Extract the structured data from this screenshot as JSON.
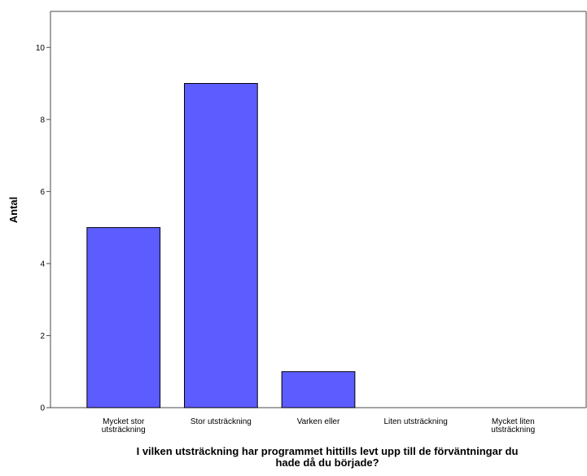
{
  "chart_data": {
    "type": "bar",
    "categories": [
      [
        "Mycket stor",
        "utsträckning"
      ],
      [
        "Stor utsträckning"
      ],
      [
        "Varken eller"
      ],
      [
        "Liten utsträckning"
      ],
      [
        "Mycket liten",
        "utsträckning"
      ]
    ],
    "values": [
      5,
      9,
      1,
      0,
      0
    ],
    "xlabel": [
      "I vilken utsträckning har programmet hittills levt upp till de förväntningar du",
      "hade då du började?"
    ],
    "ylabel": "Antal",
    "ylim": [
      0,
      11
    ],
    "yticks": [
      0,
      2,
      4,
      6,
      8,
      10
    ],
    "grid": false,
    "colors": {
      "bar": "#5c5cff",
      "axis": "#4a4a4a"
    }
  }
}
